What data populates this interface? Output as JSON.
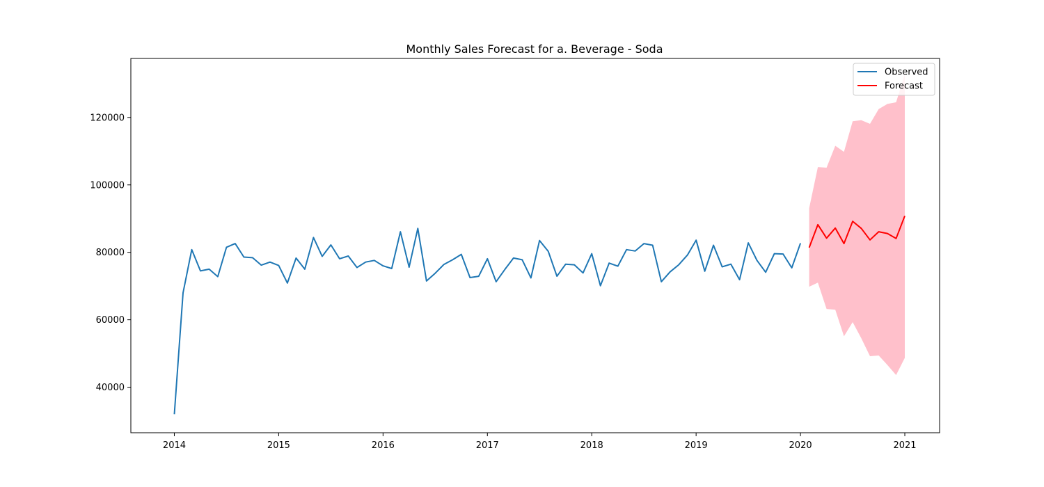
{
  "chart_data": {
    "type": "line",
    "title": "Monthly Sales Forecast for a. Beverage - Soda",
    "xlabel": "",
    "ylabel": "",
    "x_ticks": [
      "2014",
      "2015",
      "2016",
      "2017",
      "2018",
      "2019",
      "2020",
      "2021"
    ],
    "y_ticks": [
      "40000",
      "60000",
      "80000",
      "100000",
      "120000"
    ],
    "xlim": [
      "2013-08",
      "2021-05"
    ],
    "ylim": [
      26500,
      137500
    ],
    "grid": false,
    "legend_position": "top-right",
    "colors": {
      "observed": "#1f77b4",
      "forecast": "#ff0000",
      "confidence_band": "#ffc0cb"
    },
    "series": [
      {
        "name": "Observed",
        "x": [
          "2014-01",
          "2014-02",
          "2014-03",
          "2014-04",
          "2014-05",
          "2014-06",
          "2014-07",
          "2014-08",
          "2014-09",
          "2014-10",
          "2014-11",
          "2014-12",
          "2015-01",
          "2015-02",
          "2015-03",
          "2015-04",
          "2015-05",
          "2015-06",
          "2015-07",
          "2015-08",
          "2015-09",
          "2015-10",
          "2015-11",
          "2015-12",
          "2016-01",
          "2016-02",
          "2016-03",
          "2016-04",
          "2016-05",
          "2016-06",
          "2016-07",
          "2016-08",
          "2016-09",
          "2016-10",
          "2016-11",
          "2016-12",
          "2017-01",
          "2017-02",
          "2017-03",
          "2017-04",
          "2017-05",
          "2017-06",
          "2017-07",
          "2017-08",
          "2017-09",
          "2017-10",
          "2017-11",
          "2017-12",
          "2018-01",
          "2018-02",
          "2018-03",
          "2018-04",
          "2018-05",
          "2018-06",
          "2018-07",
          "2018-08",
          "2018-09",
          "2018-10",
          "2018-11",
          "2018-12",
          "2019-01",
          "2019-02",
          "2019-03",
          "2019-04",
          "2019-05",
          "2019-06",
          "2019-07",
          "2019-08",
          "2019-09",
          "2019-10",
          "2019-11",
          "2019-12",
          "2020-01"
        ],
        "values": [
          32000,
          68000,
          80800,
          74500,
          75000,
          72800,
          81500,
          82600,
          78600,
          78400,
          76200,
          77100,
          76100,
          70900,
          78300,
          75000,
          84400,
          78800,
          82200,
          78100,
          78900,
          75500,
          77100,
          77600,
          76000,
          75200,
          86100,
          75600,
          87100,
          71500,
          73800,
          76400,
          77800,
          79400,
          72500,
          72900,
          78100,
          71300,
          74900,
          78300,
          77800,
          72400,
          83500,
          80300,
          72900,
          76500,
          76300,
          73900,
          79600,
          70100,
          76800,
          75900,
          80800,
          80400,
          82600,
          82100,
          71300,
          74200,
          76300,
          79200,
          83600,
          74400,
          82100,
          75700,
          76500,
          71900,
          82800,
          77600,
          74100,
          79600,
          79500,
          75400,
          82700
        ]
      },
      {
        "name": "Forecast",
        "x": [
          "2020-02",
          "2020-03",
          "2020-04",
          "2020-05",
          "2020-06",
          "2020-07",
          "2020-08",
          "2020-09",
          "2020-10",
          "2020-11",
          "2020-12",
          "2021-01"
        ],
        "values": [
          81400,
          88200,
          84200,
          87200,
          82600,
          89200,
          87100,
          83700,
          86100,
          85600,
          84100,
          90800
        ],
        "lower": [
          69800,
          71000,
          63200,
          63000,
          55100,
          59300,
          54500,
          49200,
          49400,
          46600,
          43600,
          48700
        ],
        "upper": [
          93100,
          105300,
          105100,
          111600,
          109800,
          118900,
          119200,
          118100,
          122500,
          124000,
          124500,
          132800
        ]
      }
    ]
  }
}
